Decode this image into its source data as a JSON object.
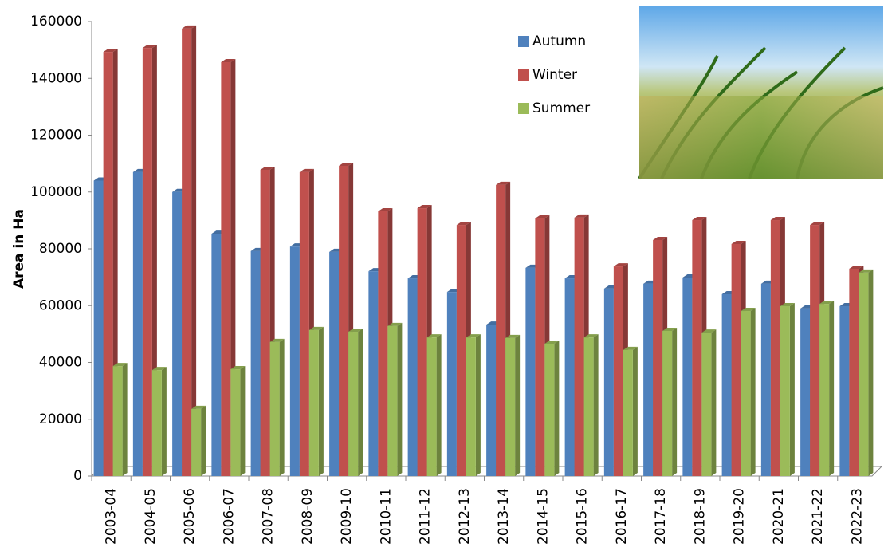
{
  "chart_data": {
    "type": "bar3d",
    "y_label": "Area in Ha",
    "categories": [
      "2003-04",
      "2004-05",
      "2005-06",
      "2006-07",
      "2007-08",
      "2008-09",
      "2009-10",
      "2010-11",
      "2011-12",
      "2012-13",
      "2013-14",
      "2014-15",
      "2015-16",
      "2016-17",
      "2017-18",
      "2018-19",
      "2019-20",
      "2020-21",
      "2021-22",
      "2022-23"
    ],
    "series": [
      {
        "name": "Autumn",
        "color": "#4f81bd",
        "values": [
          104000,
          107000,
          100000,
          85300,
          79200,
          80800,
          78900,
          72100,
          69600,
          64800,
          53300,
          73300,
          69600,
          66000,
          67700,
          69900,
          64000,
          67700,
          59000,
          59800
        ]
      },
      {
        "name": "Winter",
        "color": "#c0504d",
        "values": [
          149300,
          150700,
          157500,
          145700,
          107800,
          107000,
          109200,
          93200,
          94300,
          88400,
          102500,
          90700,
          91000,
          73800,
          83100,
          90100,
          81700,
          90100,
          88400,
          73000
        ]
      },
      {
        "name": "Summer",
        "color": "#9bbb59",
        "values": [
          38700,
          37300,
          23600,
          37600,
          47200,
          51400,
          50800,
          52800,
          48800,
          48800,
          48600,
          46600,
          48800,
          44400,
          51100,
          50500,
          58100,
          59800,
          60600,
          71600
        ]
      }
    ],
    "ylim": [
      0,
      160000
    ],
    "yticks": [
      0,
      20000,
      40000,
      60000,
      80000,
      100000,
      120000,
      140000,
      160000
    ],
    "legend": "top-right"
  }
}
